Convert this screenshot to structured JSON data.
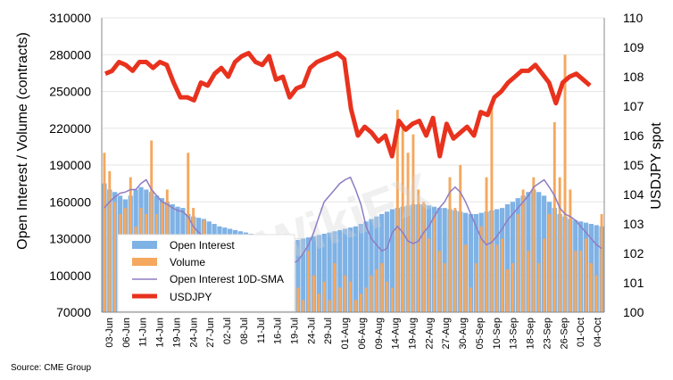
{
  "chart_data": {
    "type": "bar+line",
    "source": "Source: CME Group",
    "watermark": "WikiFX",
    "left_axis": {
      "title": "Open Interest / Volume (contracts)",
      "min": 70000,
      "max": 310000,
      "ticks": [
        "70000",
        "100000",
        "130000",
        "160000",
        "190000",
        "220000",
        "250000",
        "280000",
        "310000"
      ]
    },
    "right_axis": {
      "title": "USDJPY spot",
      "min": 100,
      "max": 110,
      "ticks": [
        "100",
        "101",
        "102",
        "103",
        "104",
        "105",
        "106",
        "107",
        "108",
        "109",
        "110"
      ]
    },
    "x_labels": [
      "03-Jun",
      "06-Jun",
      "11-Jun",
      "14-Jun",
      "19-Jun",
      "24-Jun",
      "27-Jun",
      "02-Jul",
      "08-Jul",
      "11-Jul",
      "16-Jul",
      "19-Jul",
      "24-Jul",
      "29-Jul",
      "01-Aug",
      "06-Aug",
      "09-Aug",
      "14-Aug",
      "19-Aug",
      "22-Aug",
      "27-Aug",
      "30-Aug",
      "05-Sep",
      "10-Sep",
      "13-Sep",
      "18-Sep",
      "23-Sep",
      "26-Sep",
      "01-Oct",
      "04-Oct"
    ],
    "legend": [
      "Open Interest",
      "Volume",
      "Open Interest 10D-SMA",
      "USDJPY"
    ],
    "colors": {
      "open_interest": "#7fb2e5",
      "volume": "#f5a85e",
      "sma": "#8e7cc3",
      "usdjpy": "#e8321e"
    },
    "series": [
      {
        "name": "Open Interest",
        "type": "bar",
        "values": [
          175000,
          170000,
          168000,
          165000,
          162000,
          165000,
          170000,
          172000,
          170000,
          168000,
          165000,
          163000,
          160000,
          158000,
          156000,
          155000,
          150000,
          148000,
          147000,
          146000,
          144000,
          142000,
          140000,
          139000,
          138000,
          137000,
          136000,
          135000,
          134000,
          133000,
          132000,
          131000,
          130000,
          130000,
          129000,
          128000,
          128000,
          129000,
          130000,
          131000,
          132000,
          133000,
          134000,
          135000,
          136000,
          137000,
          138000,
          139000,
          140000,
          142000,
          144000,
          146000,
          148000,
          150000,
          152000,
          154000,
          155000,
          156000,
          157000,
          158000,
          158000,
          158000,
          157000,
          156000,
          155000,
          155000,
          154000,
          153000,
          152000,
          151000,
          150000,
          150000,
          151000,
          152000,
          153000,
          154000,
          155000,
          158000,
          160000,
          163000,
          165000,
          168000,
          170000,
          168000,
          165000,
          160000,
          155000,
          150000,
          148000,
          146000,
          145000,
          144000,
          143000,
          142000,
          141000,
          140000
        ]
      },
      {
        "name": "Volume",
        "type": "bar",
        "values": [
          200000,
          185000,
          160000,
          150000,
          155000,
          180000,
          140000,
          155000,
          150000,
          210000,
          150000,
          160000,
          170000,
          120000,
          100000,
          90000,
          200000,
          155000,
          120000,
          145000,
          90000,
          85000,
          110000,
          130000,
          100000,
          90000,
          120000,
          105000,
          95000,
          85000,
          120000,
          100000,
          90000,
          110000,
          80000,
          95000,
          85000,
          90000,
          80000,
          120000,
          100000,
          85000,
          95000,
          80000,
          110000,
          90000,
          100000,
          95000,
          80000,
          85000,
          90000,
          100000,
          105000,
          110000,
          95000,
          90000,
          235000,
          220000,
          200000,
          215000,
          170000,
          160000,
          130000,
          150000,
          120000,
          110000,
          180000,
          155000,
          190000,
          125000,
          90000,
          110000,
          140000,
          180000,
          240000,
          125000,
          130000,
          105000,
          110000,
          150000,
          170000,
          120000,
          180000,
          110000,
          130000,
          150000,
          225000,
          180000,
          280000,
          170000,
          120000,
          120000,
          130000,
          110000,
          100000,
          150000
        ]
      },
      {
        "name": "Open Interest 10D-SMA",
        "type": "line",
        "values": [
          155000,
          160000,
          164000,
          167000,
          168000,
          170000,
          170000,
          175000,
          178000,
          170000,
          165000,
          160000,
          158000,
          155000,
          153000,
          152000,
          148000,
          140000,
          135000,
          132000,
          130000,
          128000,
          125000,
          122000,
          120000,
          118000,
          116000,
          115000,
          113000,
          112000,
          111000,
          110000,
          110000,
          109000,
          109000,
          108000,
          110000,
          112000,
          118000,
          125000,
          135000,
          148000,
          160000,
          165000,
          170000,
          175000,
          178000,
          180000,
          170000,
          158000,
          140000,
          130000,
          125000,
          120000,
          122000,
          135000,
          140000,
          135000,
          128000,
          126000,
          128000,
          135000,
          140000,
          148000,
          155000,
          160000,
          168000,
          172000,
          168000,
          160000,
          150000,
          140000,
          130000,
          125000,
          127000,
          132000,
          138000,
          145000,
          150000,
          155000,
          160000,
          165000,
          172000,
          175000,
          178000,
          172000,
          165000,
          155000,
          150000,
          148000,
          145000,
          140000,
          135000,
          130000,
          125000,
          122000
        ]
      },
      {
        "name": "USDJPY",
        "type": "line",
        "axis": "right",
        "values": [
          108.1,
          108.2,
          108.5,
          108.4,
          108.2,
          108.5,
          108.5,
          108.3,
          108.5,
          108.4,
          107.8,
          107.3,
          107.3,
          107.2,
          107.8,
          107.7,
          108.1,
          108.3,
          108.0,
          108.5,
          108.7,
          108.8,
          108.5,
          108.4,
          108.7,
          107.9,
          108.0,
          107.3,
          107.6,
          107.7,
          108.3,
          108.5,
          108.6,
          108.7,
          108.8,
          108.6,
          106.9,
          106.0,
          106.3,
          106.1,
          105.8,
          106.0,
          105.3,
          106.5,
          106.2,
          106.4,
          106.5,
          106.0,
          106.6,
          105.3,
          106.4,
          105.9,
          106.1,
          106.3,
          106.0,
          106.8,
          106.7,
          107.3,
          107.5,
          107.8,
          108.0,
          108.2,
          108.2,
          108.4,
          108.1,
          107.8,
          107.1,
          107.8,
          108.0,
          108.1,
          107.9,
          107.7
        ]
      }
    ]
  }
}
